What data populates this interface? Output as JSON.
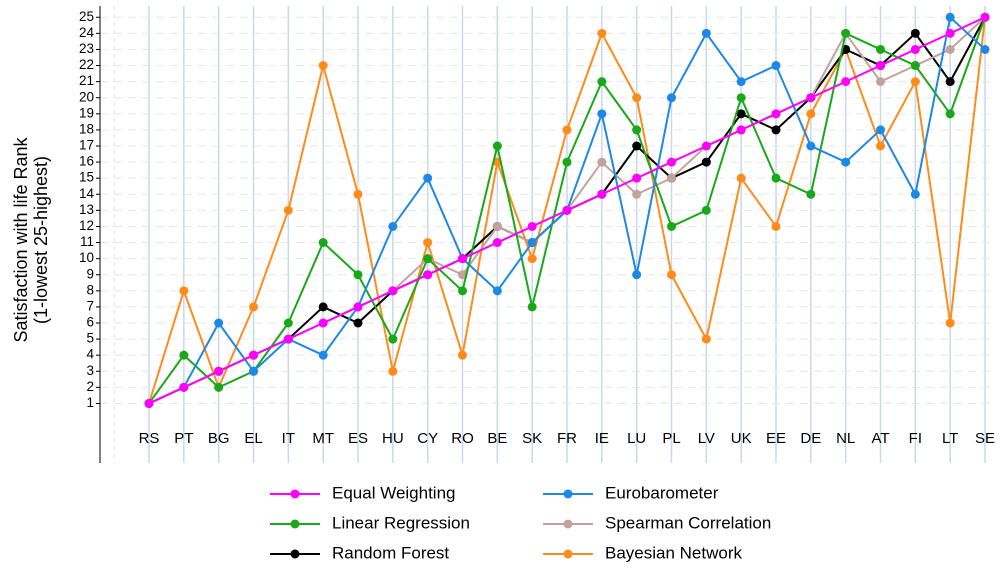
{
  "chart_data": {
    "type": "line",
    "y_label_lines": [
      "Satisfaction with life Rank",
      "(1-lowest 25-highest)"
    ],
    "categories": [
      "RS",
      "PT",
      "BG",
      "EL",
      "IT",
      "MT",
      "ES",
      "HU",
      "CY",
      "RO",
      "BE",
      "SK",
      "FR",
      "IE",
      "LU",
      "PL",
      "LV",
      "UK",
      "EE",
      "DE",
      "NL",
      "AT",
      "FI",
      "LT",
      "SE"
    ],
    "series": [
      {
        "name": "Equal Weighting",
        "color": "#ff00ff",
        "values": [
          1,
          2,
          3,
          4,
          5,
          6,
          7,
          8,
          9,
          10,
          11,
          12,
          13,
          14,
          15,
          16,
          17,
          18,
          19,
          20,
          21,
          22,
          23,
          24,
          25
        ]
      },
      {
        "name": "Eurobarometer",
        "color": "#1e88e5",
        "values": [
          1,
          2,
          6,
          3,
          5,
          4,
          7,
          12,
          15,
          10,
          8,
          11,
          13,
          19,
          9,
          20,
          24,
          21,
          22,
          17,
          16,
          18,
          14,
          25,
          23
        ]
      },
      {
        "name": "Linear Regression",
        "color": "#1aa81a",
        "values": [
          1,
          4,
          2,
          3,
          6,
          11,
          9,
          5,
          10,
          8,
          17,
          7,
          16,
          21,
          18,
          12,
          13,
          20,
          15,
          14,
          24,
          23,
          22,
          19,
          25
        ]
      },
      {
        "name": "Spearman Correlation",
        "color": "#c4a29c",
        "values": [
          1,
          2,
          3,
          4,
          5,
          6,
          7,
          8,
          10,
          9,
          12,
          11,
          13,
          16,
          14,
          15,
          17,
          18,
          19,
          20,
          24,
          21,
          22,
          23,
          25
        ]
      },
      {
        "name": "Random Forest",
        "color": "#000000",
        "values": [
          1,
          2,
          3,
          4,
          5,
          7,
          6,
          8,
          9,
          10,
          12,
          11,
          13,
          14,
          17,
          15,
          16,
          19,
          18,
          20,
          23,
          22,
          24,
          21,
          25
        ]
      },
      {
        "name": "Bayesian Network",
        "color": "#ff8c1a",
        "values": [
          1,
          8,
          2,
          7,
          13,
          22,
          14,
          3,
          11,
          4,
          16,
          10,
          18,
          24,
          20,
          9,
          5,
          15,
          12,
          19,
          23,
          17,
          21,
          6,
          25
        ]
      }
    ],
    "ylim": [
      -2.7,
      25.7
    ],
    "yticks": [
      1,
      2,
      3,
      4,
      5,
      6,
      7,
      8,
      9,
      10,
      11,
      12,
      13,
      14,
      15,
      16,
      17,
      18,
      19,
      20,
      21,
      22,
      23,
      24,
      25
    ],
    "grid": true
  }
}
